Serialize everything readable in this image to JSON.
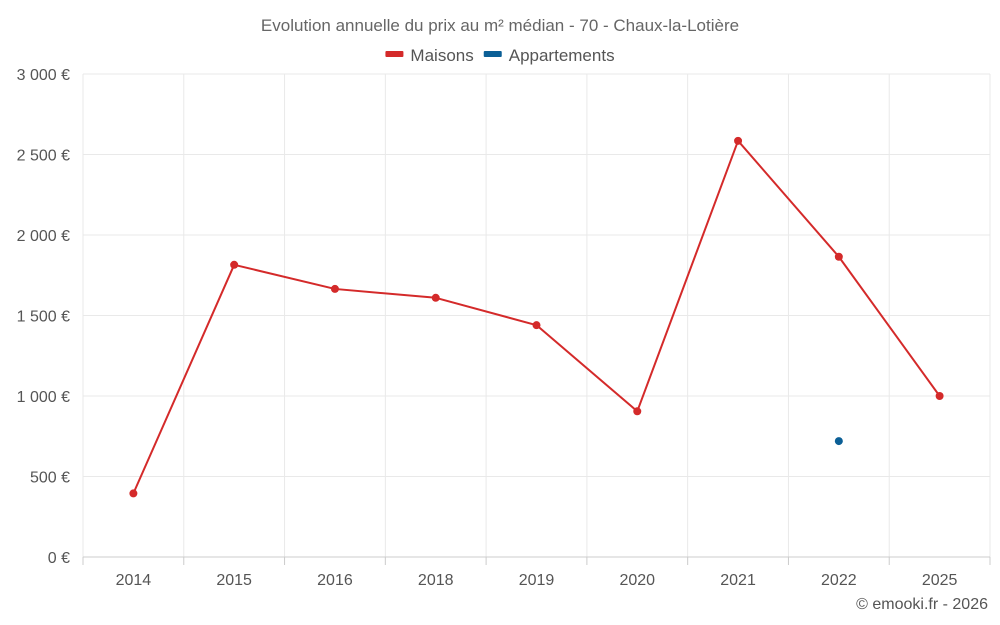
{
  "chart_data": {
    "type": "line",
    "title": "Evolution annuelle du prix au m² médian - 70 - Chaux-la-Lotière",
    "categories": [
      "2014",
      "2015",
      "2016",
      "2018",
      "2019",
      "2020",
      "2021",
      "2022",
      "2025"
    ],
    "series": [
      {
        "name": "Maisons",
        "color": "#d42a2a",
        "values": [
          395,
          1815,
          1665,
          1610,
          1440,
          905,
          2585,
          1865,
          1000
        ]
      },
      {
        "name": "Appartements",
        "color": "#0b5f96",
        "values": [
          null,
          null,
          null,
          null,
          null,
          null,
          null,
          720,
          null
        ]
      }
    ],
    "ylim": [
      0,
      3000
    ],
    "yticks": [
      0,
      500,
      1000,
      1500,
      2000,
      2500,
      3000
    ],
    "ytick_labels": [
      "0 €",
      "500 €",
      "1 000 €",
      "1 500 €",
      "2 000 €",
      "2 500 €",
      "3 000 €"
    ],
    "xlabel": "",
    "ylabel": "",
    "grid": true,
    "legend_position": "top-center"
  },
  "credit": "© emooki.fr - 2026"
}
